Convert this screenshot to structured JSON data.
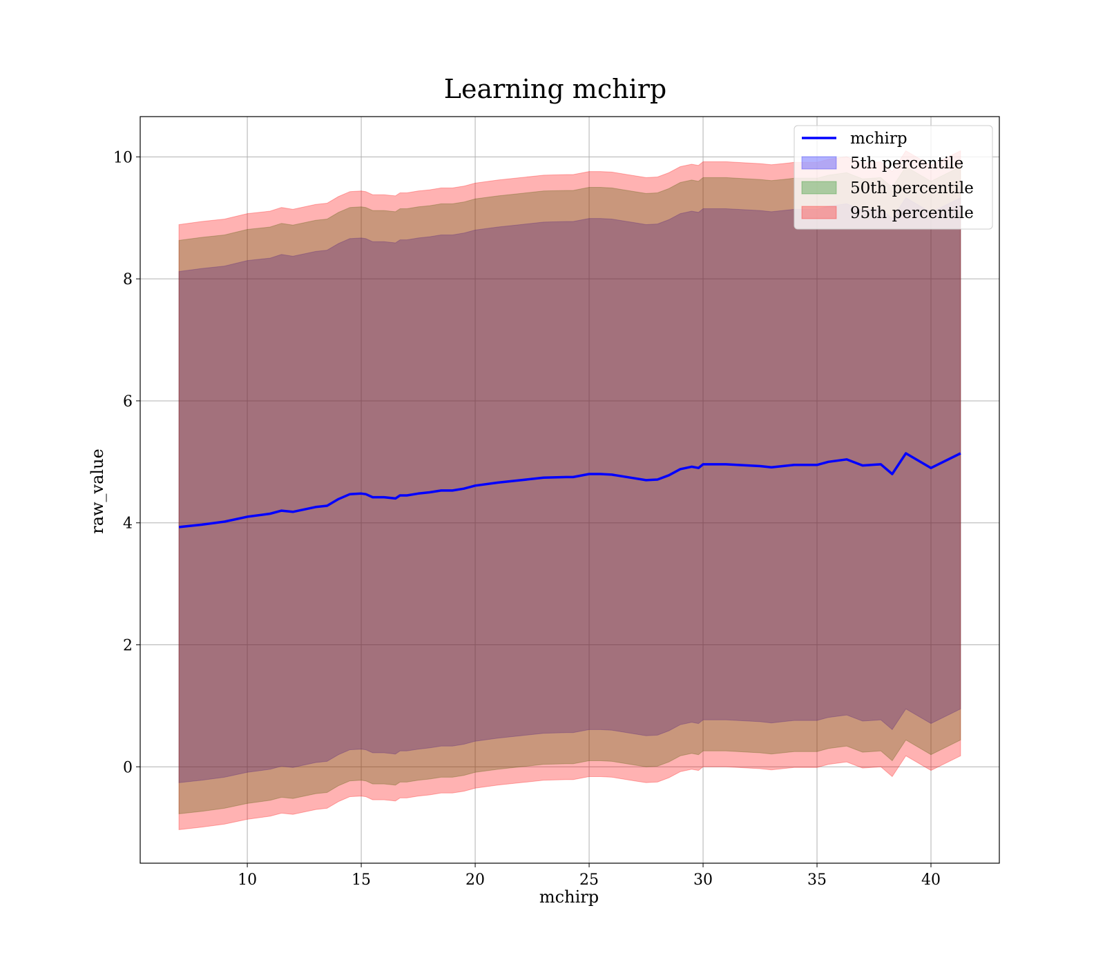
{
  "chart_data": {
    "type": "area",
    "title": "Learning mchirp",
    "xlabel": "mchirp",
    "ylabel": "raw_value",
    "xlim": [
      5.3,
      43.0
    ],
    "ylim": [
      -1.58,
      10.66
    ],
    "xticks": [
      10,
      15,
      20,
      25,
      30,
      35,
      40
    ],
    "yticks": [
      0,
      2,
      4,
      6,
      8,
      10
    ],
    "grid": true,
    "legend_position": "top-right",
    "x": [
      7.0,
      8.0,
      9.0,
      10.0,
      11.0,
      11.5,
      12.0,
      13.0,
      13.5,
      14.0,
      14.5,
      15.0,
      15.2,
      15.5,
      16.0,
      16.5,
      16.7,
      17.0,
      17.5,
      18.0,
      18.5,
      19.0,
      19.5,
      20.0,
      21.0,
      22.0,
      23.0,
      24.0,
      24.3,
      25.0,
      25.5,
      26.0,
      27.0,
      27.5,
      28.0,
      28.5,
      29.0,
      29.5,
      29.8,
      30.0,
      31.0,
      32.0,
      32.5,
      33.0,
      33.5,
      34.0,
      35.0,
      35.5,
      36.3,
      37.0,
      37.8,
      38.3,
      38.9,
      40.0,
      41.3
    ],
    "series": [
      {
        "name": "mchirp",
        "role": "line",
        "color": "#0000ff",
        "values": [
          3.93,
          3.97,
          4.02,
          4.1,
          4.15,
          4.2,
          4.18,
          4.26,
          4.28,
          4.39,
          4.47,
          4.48,
          4.47,
          4.42,
          4.42,
          4.4,
          4.45,
          4.45,
          4.48,
          4.5,
          4.53,
          4.53,
          4.56,
          4.61,
          4.66,
          4.7,
          4.74,
          4.75,
          4.75,
          4.8,
          4.8,
          4.79,
          4.73,
          4.7,
          4.71,
          4.78,
          4.88,
          4.92,
          4.9,
          4.96,
          4.96,
          4.94,
          4.93,
          4.91,
          4.93,
          4.95,
          4.95,
          5.0,
          5.04,
          4.94,
          4.96,
          4.8,
          5.14,
          4.9,
          5.14
        ]
      },
      {
        "name": "5th percentile",
        "role": "band",
        "color": "#0000ff",
        "alpha": 0.3,
        "upper": [
          8.12,
          8.17,
          8.21,
          8.3,
          8.34,
          8.4,
          8.37,
          8.45,
          8.47,
          8.58,
          8.66,
          8.67,
          8.66,
          8.61,
          8.61,
          8.59,
          8.64,
          8.64,
          8.67,
          8.69,
          8.72,
          8.72,
          8.75,
          8.8,
          8.85,
          8.89,
          8.93,
          8.94,
          8.94,
          8.99,
          8.99,
          8.98,
          8.92,
          8.89,
          8.9,
          8.97,
          9.07,
          9.11,
          9.09,
          9.15,
          9.15,
          9.13,
          9.12,
          9.1,
          9.12,
          9.14,
          9.14,
          9.19,
          9.23,
          9.13,
          9.15,
          8.99,
          9.33,
          9.09,
          9.33
        ],
        "lower": [
          -0.26,
          -0.22,
          -0.17,
          -0.09,
          -0.04,
          0.01,
          -0.01,
          0.07,
          0.09,
          0.2,
          0.28,
          0.29,
          0.28,
          0.23,
          0.23,
          0.21,
          0.26,
          0.26,
          0.29,
          0.31,
          0.34,
          0.34,
          0.37,
          0.42,
          0.47,
          0.51,
          0.55,
          0.56,
          0.56,
          0.61,
          0.61,
          0.6,
          0.54,
          0.51,
          0.52,
          0.59,
          0.69,
          0.73,
          0.71,
          0.77,
          0.77,
          0.75,
          0.74,
          0.72,
          0.74,
          0.76,
          0.76,
          0.81,
          0.85,
          0.75,
          0.77,
          0.61,
          0.95,
          0.71,
          0.95
        ]
      },
      {
        "name": "50th percentile",
        "role": "band",
        "color": "#008000",
        "alpha": 0.3,
        "upper": [
          8.63,
          8.68,
          8.72,
          8.81,
          8.85,
          8.91,
          8.88,
          8.96,
          8.98,
          9.09,
          9.17,
          9.18,
          9.17,
          9.12,
          9.12,
          9.1,
          9.15,
          9.15,
          9.18,
          9.2,
          9.23,
          9.23,
          9.26,
          9.31,
          9.36,
          9.4,
          9.44,
          9.45,
          9.45,
          9.5,
          9.5,
          9.49,
          9.43,
          9.4,
          9.41,
          9.48,
          9.58,
          9.62,
          9.6,
          9.66,
          9.66,
          9.64,
          9.63,
          9.61,
          9.63,
          9.65,
          9.65,
          9.7,
          9.74,
          9.64,
          9.66,
          9.5,
          9.84,
          9.6,
          9.84
        ],
        "lower": [
          -0.77,
          -0.73,
          -0.68,
          -0.6,
          -0.55,
          -0.5,
          -0.52,
          -0.44,
          -0.42,
          -0.31,
          -0.23,
          -0.22,
          -0.23,
          -0.28,
          -0.28,
          -0.3,
          -0.25,
          -0.25,
          -0.22,
          -0.2,
          -0.17,
          -0.17,
          -0.14,
          -0.09,
          -0.04,
          0.0,
          0.04,
          0.05,
          0.05,
          0.1,
          0.1,
          0.09,
          0.03,
          0.0,
          0.01,
          0.08,
          0.18,
          0.22,
          0.2,
          0.26,
          0.26,
          0.24,
          0.23,
          0.21,
          0.23,
          0.25,
          0.25,
          0.3,
          0.34,
          0.24,
          0.26,
          0.1,
          0.44,
          0.2,
          0.44
        ]
      },
      {
        "name": "95th percentile",
        "role": "band",
        "color": "#ff0000",
        "alpha": 0.3,
        "upper": [
          8.89,
          8.94,
          8.98,
          9.07,
          9.11,
          9.17,
          9.14,
          9.22,
          9.24,
          9.35,
          9.43,
          9.44,
          9.43,
          9.38,
          9.38,
          9.36,
          9.41,
          9.41,
          9.44,
          9.46,
          9.49,
          9.49,
          9.52,
          9.57,
          9.62,
          9.66,
          9.7,
          9.71,
          9.71,
          9.76,
          9.76,
          9.75,
          9.69,
          9.66,
          9.67,
          9.74,
          9.84,
          9.88,
          9.86,
          9.92,
          9.92,
          9.9,
          9.89,
          9.87,
          9.89,
          9.91,
          9.91,
          9.96,
          10.0,
          9.9,
          9.92,
          9.76,
          10.1,
          9.86,
          10.1
        ],
        "lower": [
          -1.03,
          -0.99,
          -0.94,
          -0.86,
          -0.81,
          -0.76,
          -0.78,
          -0.7,
          -0.68,
          -0.57,
          -0.49,
          -0.48,
          -0.49,
          -0.54,
          -0.54,
          -0.56,
          -0.51,
          -0.51,
          -0.48,
          -0.46,
          -0.43,
          -0.43,
          -0.4,
          -0.35,
          -0.3,
          -0.26,
          -0.22,
          -0.21,
          -0.21,
          -0.16,
          -0.16,
          -0.17,
          -0.23,
          -0.26,
          -0.25,
          -0.18,
          -0.08,
          -0.04,
          -0.06,
          0.0,
          0.0,
          -0.02,
          -0.03,
          -0.05,
          -0.03,
          -0.01,
          -0.01,
          0.04,
          0.08,
          -0.02,
          0.0,
          -0.16,
          0.18,
          -0.06,
          0.18
        ]
      }
    ]
  }
}
